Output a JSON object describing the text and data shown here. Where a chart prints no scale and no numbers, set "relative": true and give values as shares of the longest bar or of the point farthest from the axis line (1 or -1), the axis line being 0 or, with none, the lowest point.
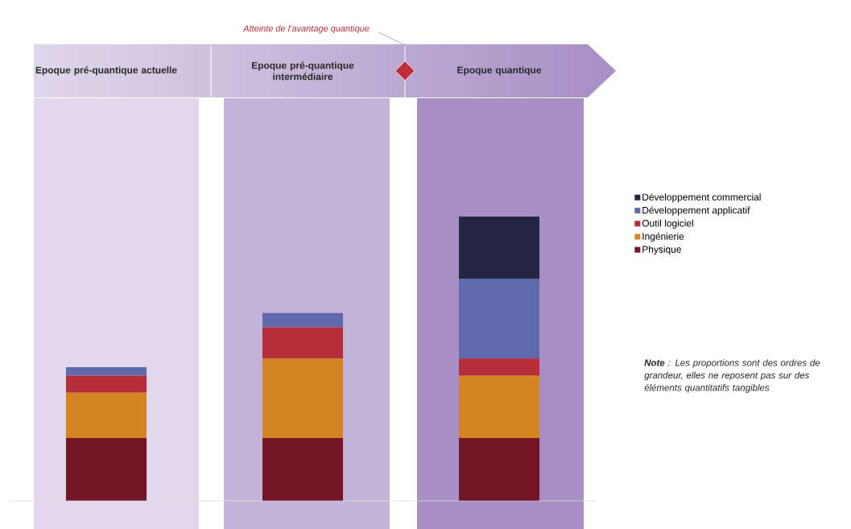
{
  "chart_data": {
    "type": "bar",
    "stacked": true,
    "relative": true,
    "categories": [
      "Epoque pré-quantique actuelle",
      "Epoque pré-quantique intermédiaire",
      "Epoque quantique"
    ],
    "series": [
      {
        "name": "Physique",
        "color": "#741526",
        "values": [
          0.22,
          0.22,
          0.22
        ]
      },
      {
        "name": "Ingénierie",
        "color": "#d38522",
        "values": [
          0.16,
          0.28,
          0.22
        ]
      },
      {
        "name": "Outil logiciel",
        "color": "#b72d3a",
        "values": [
          0.06,
          0.11,
          0.06
        ]
      },
      {
        "name": "Développement applicatif",
        "color": "#5e6aac",
        "values": [
          0.03,
          0.05,
          0.28
        ]
      },
      {
        "name": "Développement commercial",
        "color": "#232743",
        "values": [
          0,
          0,
          0.22
        ]
      }
    ],
    "legend": "right",
    "annotations": [
      "Atteinte de l’avantage quantique",
      "**Note** : Les proportions sont des ordres de grandeur, elles ne reposent pas sur des éléments quantitatifs tangibles"
    ]
  }
}
